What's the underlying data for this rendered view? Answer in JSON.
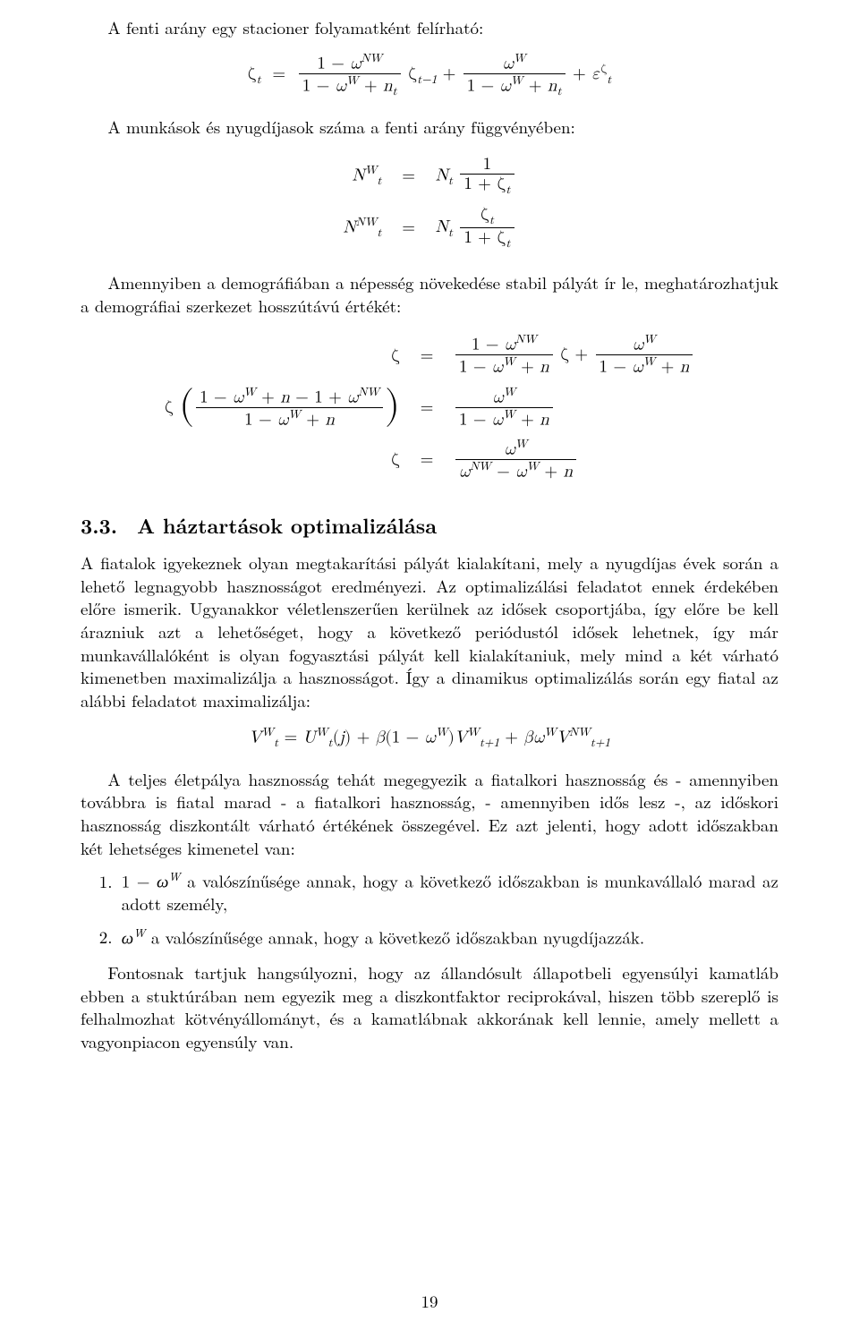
{
  "para1": "A fenti arány egy stacioner folyamatként felírható:",
  "eq1": {
    "lhs": "ζ<span class='sub it'>t</span>",
    "rhs": "<span class='frac'><span class='num'>1 − <span class='it'>ω</span><span class='sup it'>NW</span></span><span class='den'>1 − <span class='it'>ω</span><span class='sup it'>W</span> + <span class='it'>n</span><span class='sub it'>t</span></span></span> ζ<span class='sub it'>t−1</span> + <span class='frac'><span class='num'><span class='it'>ω</span><span class='sup it'>W</span></span><span class='den'>1 − <span class='it'>ω</span><span class='sup it'>W</span> + <span class='it'>n</span><span class='sub it'>t</span></span></span> + <span class='it'>ε</span><span class='sup'>ζ</span><span class='sub it'>t</span>"
  },
  "para2": "A munkások és nyugdíjasok száma a fenti arány függvényében:",
  "eq2": {
    "row1_l": "<span class='it'>N</span><span class='sup it'>W</span><span class='sub it'>t</span>",
    "row1_r": "<span class='it'>N</span><span class='sub it'>t</span> <span class='frac'><span class='num'>1</span><span class='den'>1 + ζ<span class='sub it'>t</span></span></span>",
    "row2_l": "<span class='it'>N</span><span class='sup it'>NW</span><span class='sub it'>t</span>",
    "row2_r": "<span class='it'>N</span><span class='sub it'>t</span> <span class='frac'><span class='num'>ζ<span class='sub it'>t</span></span><span class='den'>1 + ζ<span class='sub it'>t</span></span></span>"
  },
  "para3": "Amennyiben a demográfiában a népesség növekedése stabil pályát ír le, meghatározhatjuk a demográfiai szerkezet hosszútávú értékét:",
  "eq3": {
    "row1_l": "ζ",
    "row1_r": "<span class='frac'><span class='num'>1 − <span class='it'>ω</span><span class='sup it'>NW</span></span><span class='den'>1 − <span class='it'>ω</span><span class='sup it'>W</span> + <span class='it'>n</span></span></span> ζ + <span class='frac'><span class='num'><span class='it'>ω</span><span class='sup it'>W</span></span><span class='den'>1 − <span class='it'>ω</span><span class='sup it'>W</span> + <span class='it'>n</span></span></span>",
    "row2_l": "ζ <span class='big-paren'>(</span><span class='frac'><span class='num'>1 − <span class='it'>ω</span><span class='sup it'>W</span> + <span class='it'>n</span> − 1 + <span class='it'>ω</span><span class='sup it'>NW</span></span><span class='den'>1 − <span class='it'>ω</span><span class='sup it'>W</span> + <span class='it'>n</span></span></span><span class='big-paren'>)</span>",
    "row2_r": "<span class='frac'><span class='num'><span class='it'>ω</span><span class='sup it'>W</span></span><span class='den'>1 − <span class='it'>ω</span><span class='sup it'>W</span> + <span class='it'>n</span></span></span>",
    "row3_l": "ζ",
    "row3_r": "<span class='frac'><span class='num'><span class='it'>ω</span><span class='sup it'>W</span></span><span class='den'><span class='it'>ω</span><span class='sup it'>NW</span> − <span class='it'>ω</span><span class='sup it'>W</span> + <span class='it'>n</span></span></span>"
  },
  "section": {
    "number": "3.3.",
    "title": "A háztartások optimalizálása"
  },
  "para4": "A fiatalok igyekeznek olyan megtakarítási pályát kialakítani, mely a nyugdíjas évek során a lehető legnagyobb hasznosságot eredményezi. Az optimalizálási feladatot ennek érdekében előre ismerik. Ugyanakkor véletlenszerűen kerülnek az idősek csoportjába, így előre be kell árazniuk azt a lehetőséget, hogy a következő periódustól idősek lehetnek, így már munkavállalóként is olyan fogyasztási pályát kell kialakítaniuk, mely mind a két várható kimenetben maximalizálja a hasznosságot. Így a dinamikus optimalizálás során egy fiatal az alábbi feladatot maximalizálja:",
  "eq4": "<span class='it'>V</span><span class='sup it'>W</span><span class='sub it'>t</span> = <span class='it'>U</span><span class='sup it'>W</span><span class='sub it'>t</span>(<span class='it'>j</span>) + <span class='it'>β</span>(1 − <span class='it'>ω</span><span class='sup it'>W</span>)<span class='it'>V</span><span class='sup it'>W</span><span class='sub it'>t+1</span> + <span class='it'>βω</span><span class='sup it'>W</span><span class='it'>V</span><span class='sup it'>NW</span><span class='sub it'>t+1</span>",
  "para5": "A teljes életpálya hasznosság tehát megegyezik a fiatalkori hasznosság és - amennyiben továbbra is fiatal marad - a fiatalkori hasznosság, - amennyiben idős lesz -, az időskori hasznosság diszkontált várható értékének összegével. Ez azt jelenti, hogy adott időszakban két lehetséges kimenetel van:",
  "list": {
    "item1_pre": "1 − ",
    "item1_math": "ω",
    "item1_sup": "W",
    "item1_post": " a valószínűsége annak, hogy a következő időszakban is munkavállaló marad az adott személy,",
    "item2_math": "ω",
    "item2_sup": "W",
    "item2_post": " a valószínűsége annak, hogy a következő időszakban nyugdíjazzák."
  },
  "para6": "Fontosnak tartjuk hangsúlyozni, hogy az állandósult állapotbeli egyensúlyi kamatláb ebben a stuktúrában nem egyezik meg a diszkontfaktor reciprokával, hiszen több szereplő is felhalmozhat kötvényállományt, és a kamatlábnak akkorának kell lennie, amely mellett a vagyonpiacon egyensúly van.",
  "page_number": "19"
}
